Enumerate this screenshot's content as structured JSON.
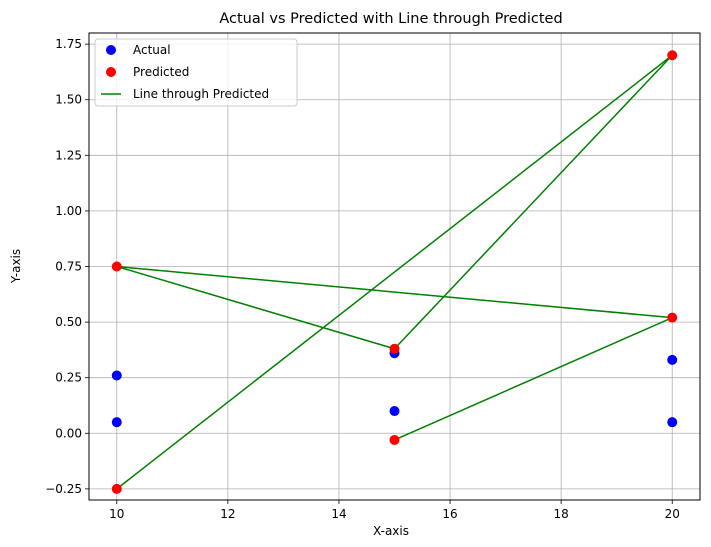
{
  "chart_data": {
    "type": "scatter",
    "title": "Actual vs Predicted with Line through Predicted",
    "xlabel": "X-axis",
    "ylabel": "Y-axis",
    "xlim": [
      9.5,
      20.5
    ],
    "ylim": [
      -0.3,
      1.8
    ],
    "xticks": [
      10,
      12,
      14,
      16,
      18,
      20
    ],
    "xtick_labels": [
      "10",
      "12",
      "14",
      "16",
      "18",
      "20"
    ],
    "yticks": [
      -0.25,
      0.0,
      0.25,
      0.5,
      0.75,
      1.0,
      1.25,
      1.5,
      1.75
    ],
    "ytick_labels": [
      "−0.25",
      "0.00",
      "0.25",
      "0.50",
      "0.75",
      "1.00",
      "1.25",
      "1.50",
      "1.75"
    ],
    "grid": true,
    "legend_position": "top-left",
    "series": [
      {
        "name": "Actual",
        "kind": "scatter",
        "color": "#0000ff",
        "x": [
          10,
          10,
          15,
          15,
          20,
          20
        ],
        "y": [
          0.26,
          0.05,
          0.36,
          0.1,
          0.33,
          0.05
        ]
      },
      {
        "name": "Predicted",
        "kind": "scatter",
        "color": "#ff0000",
        "x": [
          10,
          15,
          20,
          10,
          15,
          20
        ],
        "y": [
          -0.25,
          0.38,
          1.7,
          0.75,
          -0.03,
          0.52
        ]
      },
      {
        "name": "Line through Predicted",
        "kind": "line",
        "color": "#008000",
        "x": [
          10,
          20,
          15,
          10,
          20,
          15
        ],
        "y": [
          -0.25,
          1.7,
          0.38,
          0.75,
          0.52,
          -0.03
        ]
      }
    ]
  }
}
